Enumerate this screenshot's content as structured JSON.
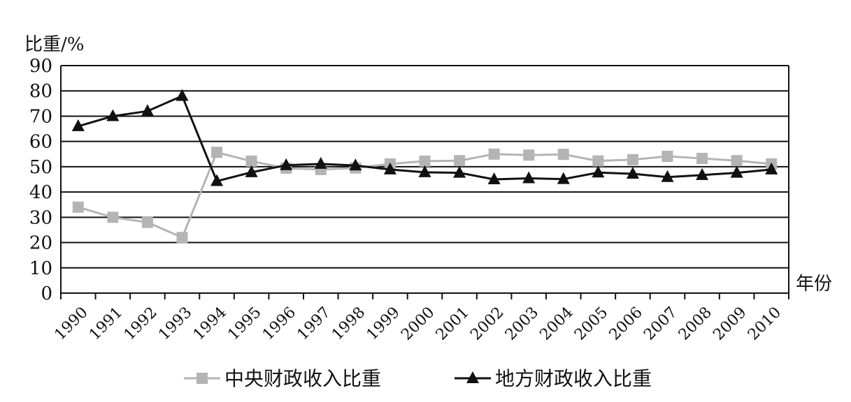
{
  "chart_data": {
    "type": "line",
    "ylabel": "比重/%",
    "xlabel": "年份",
    "ylim": [
      0,
      90
    ],
    "yticks": [
      "0",
      "10",
      "20",
      "30",
      "40",
      "50",
      "60",
      "70",
      "80",
      "90"
    ],
    "categories": [
      "1990",
      "1991",
      "1992",
      "1993",
      "1994",
      "1995",
      "1996",
      "1997",
      "1998",
      "1999",
      "2000",
      "2001",
      "2002",
      "2003",
      "2004",
      "2005",
      "2006",
      "2007",
      "2008",
      "2009",
      "2010"
    ],
    "grid": "horizontal",
    "legend_position": "bottom",
    "series": [
      {
        "name": "中央财政收入比重",
        "color": "#b4b4b4",
        "marker": "square",
        "values": [
          34,
          30,
          28,
          22,
          55.7,
          52.2,
          49.4,
          48.9,
          49.5,
          51.1,
          52.2,
          52.4,
          55,
          54.6,
          54.9,
          52.3,
          52.8,
          54.1,
          53.3,
          52.4,
          51.1
        ]
      },
      {
        "name": "地方财政收入比重",
        "color": "#111111",
        "marker": "triangle",
        "values": [
          66,
          70,
          72,
          78,
          44.3,
          47.8,
          50.6,
          51.1,
          50.5,
          48.9,
          47.8,
          47.6,
          45,
          45.4,
          45.1,
          47.7,
          47.2,
          45.9,
          46.7,
          47.6,
          48.9
        ]
      }
    ]
  }
}
